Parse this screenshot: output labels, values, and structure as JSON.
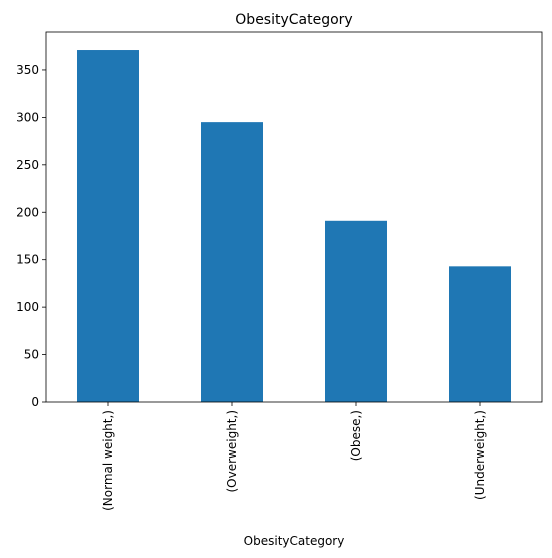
{
  "chart_data": {
    "type": "bar",
    "title": "ObesityCategory",
    "xlabel": "ObesityCategory",
    "ylabel": "",
    "categories": [
      "(Normal weight,)",
      "(Overweight,)",
      "(Obese,)",
      "(Underweight,)"
    ],
    "values": [
      371,
      295,
      191,
      143
    ],
    "ylim": [
      0,
      390
    ],
    "yticks": [
      0,
      50,
      100,
      150,
      200,
      250,
      300,
      350
    ],
    "bar_color": "#1f77b4",
    "grid": false,
    "legend": "none"
  }
}
